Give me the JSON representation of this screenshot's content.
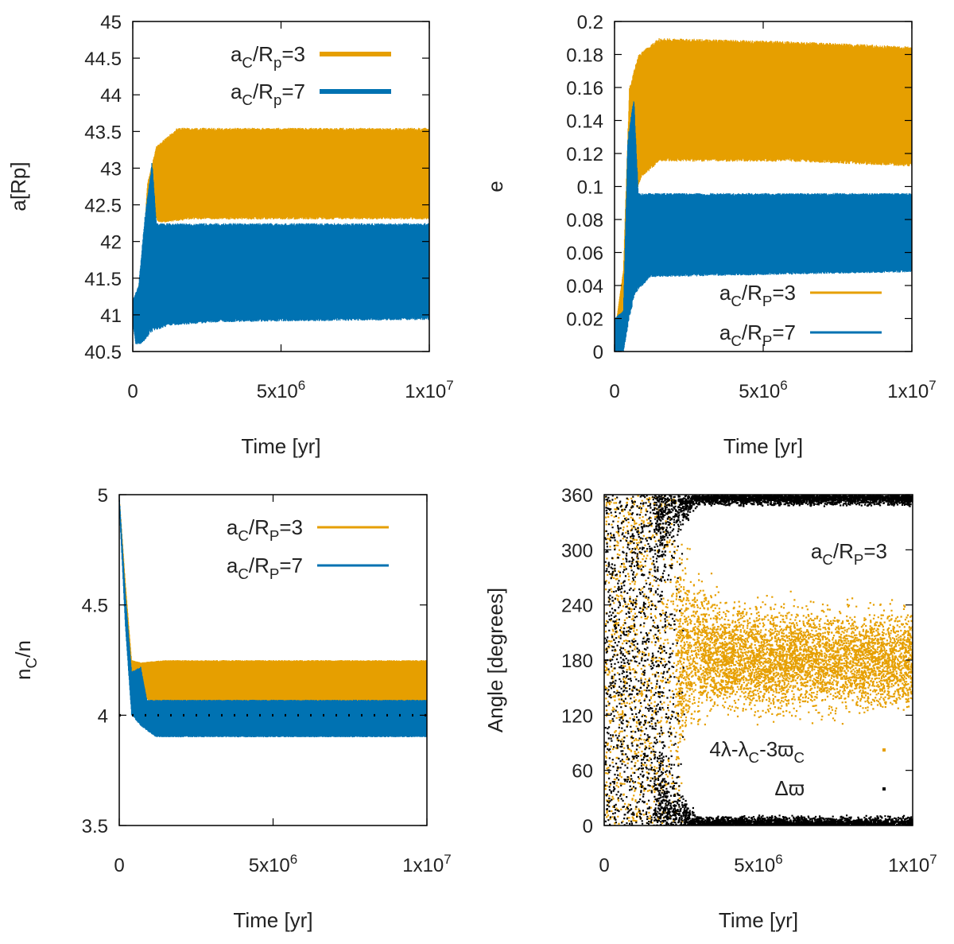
{
  "colors": {
    "orange": "#e69f00",
    "blue": "#0072b2",
    "black": "#000000",
    "frame": "#000000"
  },
  "chart_data": [
    {
      "id": "a",
      "type": "area",
      "title": "",
      "xlabel": "Time [yr]",
      "ylabel": "a[Rp]",
      "xlim": [
        0,
        10000000
      ],
      "ylim": [
        40.5,
        45
      ],
      "xticks": [
        0,
        5000000,
        10000000
      ],
      "xtick_labels": [
        "0",
        "5x10^6",
        "1x10^7"
      ],
      "yticks": [
        40.5,
        41,
        41.5,
        42,
        42.5,
        43,
        43.5,
        44,
        44.5,
        45
      ],
      "ytick_labels": [
        "40.5",
        "41",
        "41.5",
        "42",
        "42.5",
        "43",
        "43.5",
        "44",
        "44.5",
        "45"
      ],
      "legend": {
        "placement": "top-right",
        "style": "thick-line"
      },
      "series": [
        {
          "name": "aC/Rp=3",
          "label_base": "a",
          "label_sub1": "C",
          "label_mid": "/R",
          "label_sub2": "p",
          "label_tail": "=3",
          "color": "orange",
          "min": [
            [
              0,
              40.9
            ],
            [
              250000,
              41.0
            ],
            [
              600000,
              42.4
            ],
            [
              900000,
              42.25
            ],
            [
              2000000,
              42.3
            ],
            [
              10000000,
              42.3
            ]
          ],
          "max": [
            [
              0,
              41.0
            ],
            [
              300000,
              41.6
            ],
            [
              500000,
              42.8
            ],
            [
              800000,
              43.3
            ],
            [
              1500000,
              43.55
            ],
            [
              10000000,
              43.55
            ]
          ]
        },
        {
          "name": "aC/Rp=7",
          "label_base": "a",
          "label_sub1": "C",
          "label_mid": "/R",
          "label_sub2": "p",
          "label_tail": "=7",
          "color": "blue",
          "min": [
            [
              0,
              40.9
            ],
            [
              100000,
              40.6
            ],
            [
              300000,
              40.6
            ],
            [
              600000,
              40.75
            ],
            [
              1200000,
              40.85
            ],
            [
              3000000,
              40.9
            ],
            [
              10000000,
              40.93
            ]
          ],
          "max": [
            [
              0,
              41.2
            ],
            [
              200000,
              41.4
            ],
            [
              400000,
              42.3
            ],
            [
              650000,
              43.1
            ],
            [
              800000,
              42.25
            ],
            [
              10000000,
              42.25
            ]
          ]
        }
      ]
    },
    {
      "id": "e",
      "type": "area",
      "title": "",
      "xlabel": "Time [yr]",
      "ylabel": "e",
      "xlim": [
        0,
        10000000
      ],
      "ylim": [
        0,
        0.2
      ],
      "xticks": [
        0,
        5000000,
        10000000
      ],
      "xtick_labels": [
        "0",
        "5x10^6",
        "1x10^7"
      ],
      "yticks": [
        0,
        0.02,
        0.04,
        0.06,
        0.08,
        0.1,
        0.12,
        0.14,
        0.16,
        0.18,
        0.2
      ],
      "ytick_labels": [
        "0",
        "0.02",
        "0.04",
        "0.06",
        "0.08",
        "0.1",
        "0.12",
        "0.14",
        "0.16",
        "0.18",
        "0.2"
      ],
      "legend": {
        "placement": "bottom-right",
        "style": "thin-line"
      },
      "series": [
        {
          "name": "aC/RP=3",
          "label_base": "a",
          "label_sub1": "C",
          "label_mid": "/R",
          "label_sub2": "P",
          "label_tail": "=3",
          "color": "orange",
          "min": [
            [
              0,
              0.0
            ],
            [
              300000,
              0.01
            ],
            [
              600000,
              0.09
            ],
            [
              900000,
              0.105
            ],
            [
              1500000,
              0.115
            ],
            [
              6000000,
              0.115
            ],
            [
              10000000,
              0.112
            ]
          ],
          "max": [
            [
              0,
              0.01
            ],
            [
              300000,
              0.05
            ],
            [
              500000,
              0.16
            ],
            [
              800000,
              0.18
            ],
            [
              1500000,
              0.19
            ],
            [
              6000000,
              0.188
            ],
            [
              10000000,
              0.185
            ]
          ]
        },
        {
          "name": "aC/RP=7",
          "label_base": "a",
          "label_sub1": "C",
          "label_mid": "/R",
          "label_sub2": "P",
          "label_tail": "=7",
          "color": "blue",
          "min": [
            [
              0,
              0.0
            ],
            [
              300000,
              0.0
            ],
            [
              500000,
              0.02
            ],
            [
              700000,
              0.035
            ],
            [
              1200000,
              0.045
            ],
            [
              10000000,
              0.048
            ]
          ],
          "max": [
            [
              0,
              0.02
            ],
            [
              300000,
              0.025
            ],
            [
              450000,
              0.13
            ],
            [
              650000,
              0.155
            ],
            [
              800000,
              0.096
            ],
            [
              10000000,
              0.096
            ]
          ]
        }
      ]
    },
    {
      "id": "n",
      "type": "area",
      "title": "",
      "xlabel": "Time [yr]",
      "ylabel": "nC/n",
      "ylabel_base": "n",
      "ylabel_sub": "C",
      "ylabel_tail": "/n",
      "xlim": [
        0,
        10000000
      ],
      "ylim": [
        3.5,
        5
      ],
      "xticks": [
        0,
        5000000,
        10000000
      ],
      "xtick_labels": [
        "0",
        "5x10^6",
        "1x10^7"
      ],
      "yticks": [
        3.5,
        4,
        4.5,
        5
      ],
      "ytick_labels": [
        "3.5",
        "4",
        "4.5",
        "5"
      ],
      "legend": {
        "placement": "top-right",
        "style": "thin-line"
      },
      "reference_line": {
        "y": 4,
        "style": "dotted",
        "color": "black"
      },
      "series": [
        {
          "name": "aC/RP=3",
          "label_base": "a",
          "label_sub1": "C",
          "label_mid": "/R",
          "label_sub2": "P",
          "label_tail": "=3",
          "color": "orange",
          "min": [
            [
              0,
              5.0
            ],
            [
              200000,
              4.55
            ],
            [
              400000,
              4.2
            ],
            [
              700000,
              4.1
            ],
            [
              1000000,
              4.06
            ],
            [
              10000000,
              4.06
            ]
          ],
          "max": [
            [
              0,
              5.0
            ],
            [
              200000,
              4.6
            ],
            [
              400000,
              4.25
            ],
            [
              700000,
              4.24
            ],
            [
              1500000,
              4.25
            ],
            [
              10000000,
              4.25
            ]
          ]
        },
        {
          "name": "aC/RP=7",
          "label_base": "a",
          "label_sub1": "C",
          "label_mid": "/R",
          "label_sub2": "P",
          "label_tail": "=7",
          "color": "blue",
          "min": [
            [
              0,
              4.95
            ],
            [
              200000,
              4.4
            ],
            [
              400000,
              4.0
            ],
            [
              700000,
              3.95
            ],
            [
              1200000,
              3.9
            ],
            [
              10000000,
              3.9
            ]
          ],
          "max": [
            [
              0,
              5.0
            ],
            [
              200000,
              4.55
            ],
            [
              400000,
              4.2
            ],
            [
              700000,
              4.22
            ],
            [
              900000,
              4.07
            ],
            [
              10000000,
              4.07
            ]
          ]
        }
      ]
    },
    {
      "id": "angle",
      "type": "scatter",
      "title": "",
      "xlabel": "Time [yr]",
      "ylabel": "Angle [degrees]",
      "xlim": [
        0,
        10000000
      ],
      "ylim": [
        0,
        360
      ],
      "xticks": [
        0,
        5000000,
        10000000
      ],
      "xtick_labels": [
        "0",
        "5x10^6",
        "1x10^7"
      ],
      "yticks": [
        0,
        60,
        120,
        180,
        240,
        300,
        360
      ],
      "ytick_labels": [
        "0",
        "60",
        "120",
        "180",
        "240",
        "300",
        "360"
      ],
      "annotation": {
        "label_base": "a",
        "label_sub1": "C",
        "label_mid": "/R",
        "label_sub2": "P",
        "label_tail": "=3",
        "placement": "upper-right"
      },
      "legend": {
        "placement": "bottom-right",
        "style": "point"
      },
      "series": [
        {
          "name": "4λ-λC-3ϖC",
          "label_base": "4λ-λ",
          "label_sub1": "C",
          "label_mid": "-3ϖ",
          "label_sub2": "C",
          "label_tail": "",
          "color": "orange",
          "chaotic_until": 2300000,
          "envelope_min": [
            [
              2300000,
              40
            ],
            [
              3000000,
              100
            ],
            [
              4000000,
              115
            ],
            [
              10000000,
              118
            ]
          ],
          "envelope_max": [
            [
              2300000,
              330
            ],
            [
              3000000,
              280
            ],
            [
              4000000,
              250
            ],
            [
              10000000,
              245
            ]
          ]
        },
        {
          "name": "Δϖ",
          "label_base": "Δϖ",
          "label_sub1": "",
          "label_mid": "",
          "label_sub2": "",
          "label_tail": "",
          "color": "black",
          "chaotic_until": 2200000,
          "bands": [
            [
              0,
              12
            ],
            [
              348,
              360
            ]
          ]
        }
      ]
    }
  ]
}
